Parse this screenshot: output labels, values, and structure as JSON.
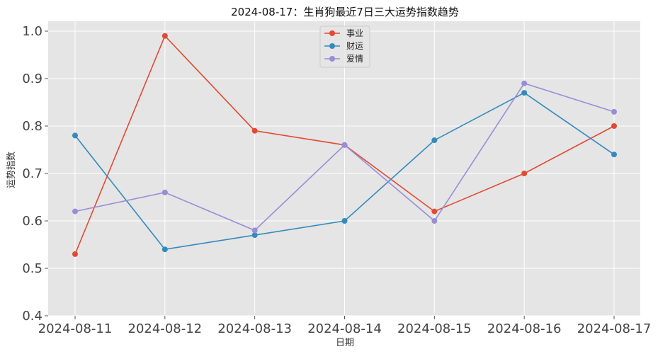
{
  "chart_data": {
    "type": "line",
    "title": "2024-08-17：生肖狗最近7日三大运势指数趋势",
    "xlabel": "日期",
    "ylabel": "运势指数",
    "categories": [
      "2024-08-11",
      "2024-08-12",
      "2024-08-13",
      "2024-08-14",
      "2024-08-15",
      "2024-08-16",
      "2024-08-17"
    ],
    "ylim": [
      0.4,
      1.0
    ],
    "yticks": [
      "0.4",
      "0.5",
      "0.6",
      "0.7",
      "0.8",
      "0.9",
      "1.0"
    ],
    "grid": true,
    "legend_position": "top-center",
    "series": [
      {
        "name": "事业",
        "color": "#E24A33",
        "values": [
          0.53,
          0.99,
          0.79,
          0.76,
          0.62,
          0.7,
          0.8
        ]
      },
      {
        "name": "财运",
        "color": "#348ABD",
        "values": [
          0.78,
          0.54,
          0.57,
          0.6,
          0.77,
          0.87,
          0.74
        ]
      },
      {
        "name": "爱情",
        "color": "#988ED5",
        "values": [
          0.62,
          0.66,
          0.58,
          0.76,
          0.6,
          0.89,
          0.83
        ]
      }
    ]
  }
}
